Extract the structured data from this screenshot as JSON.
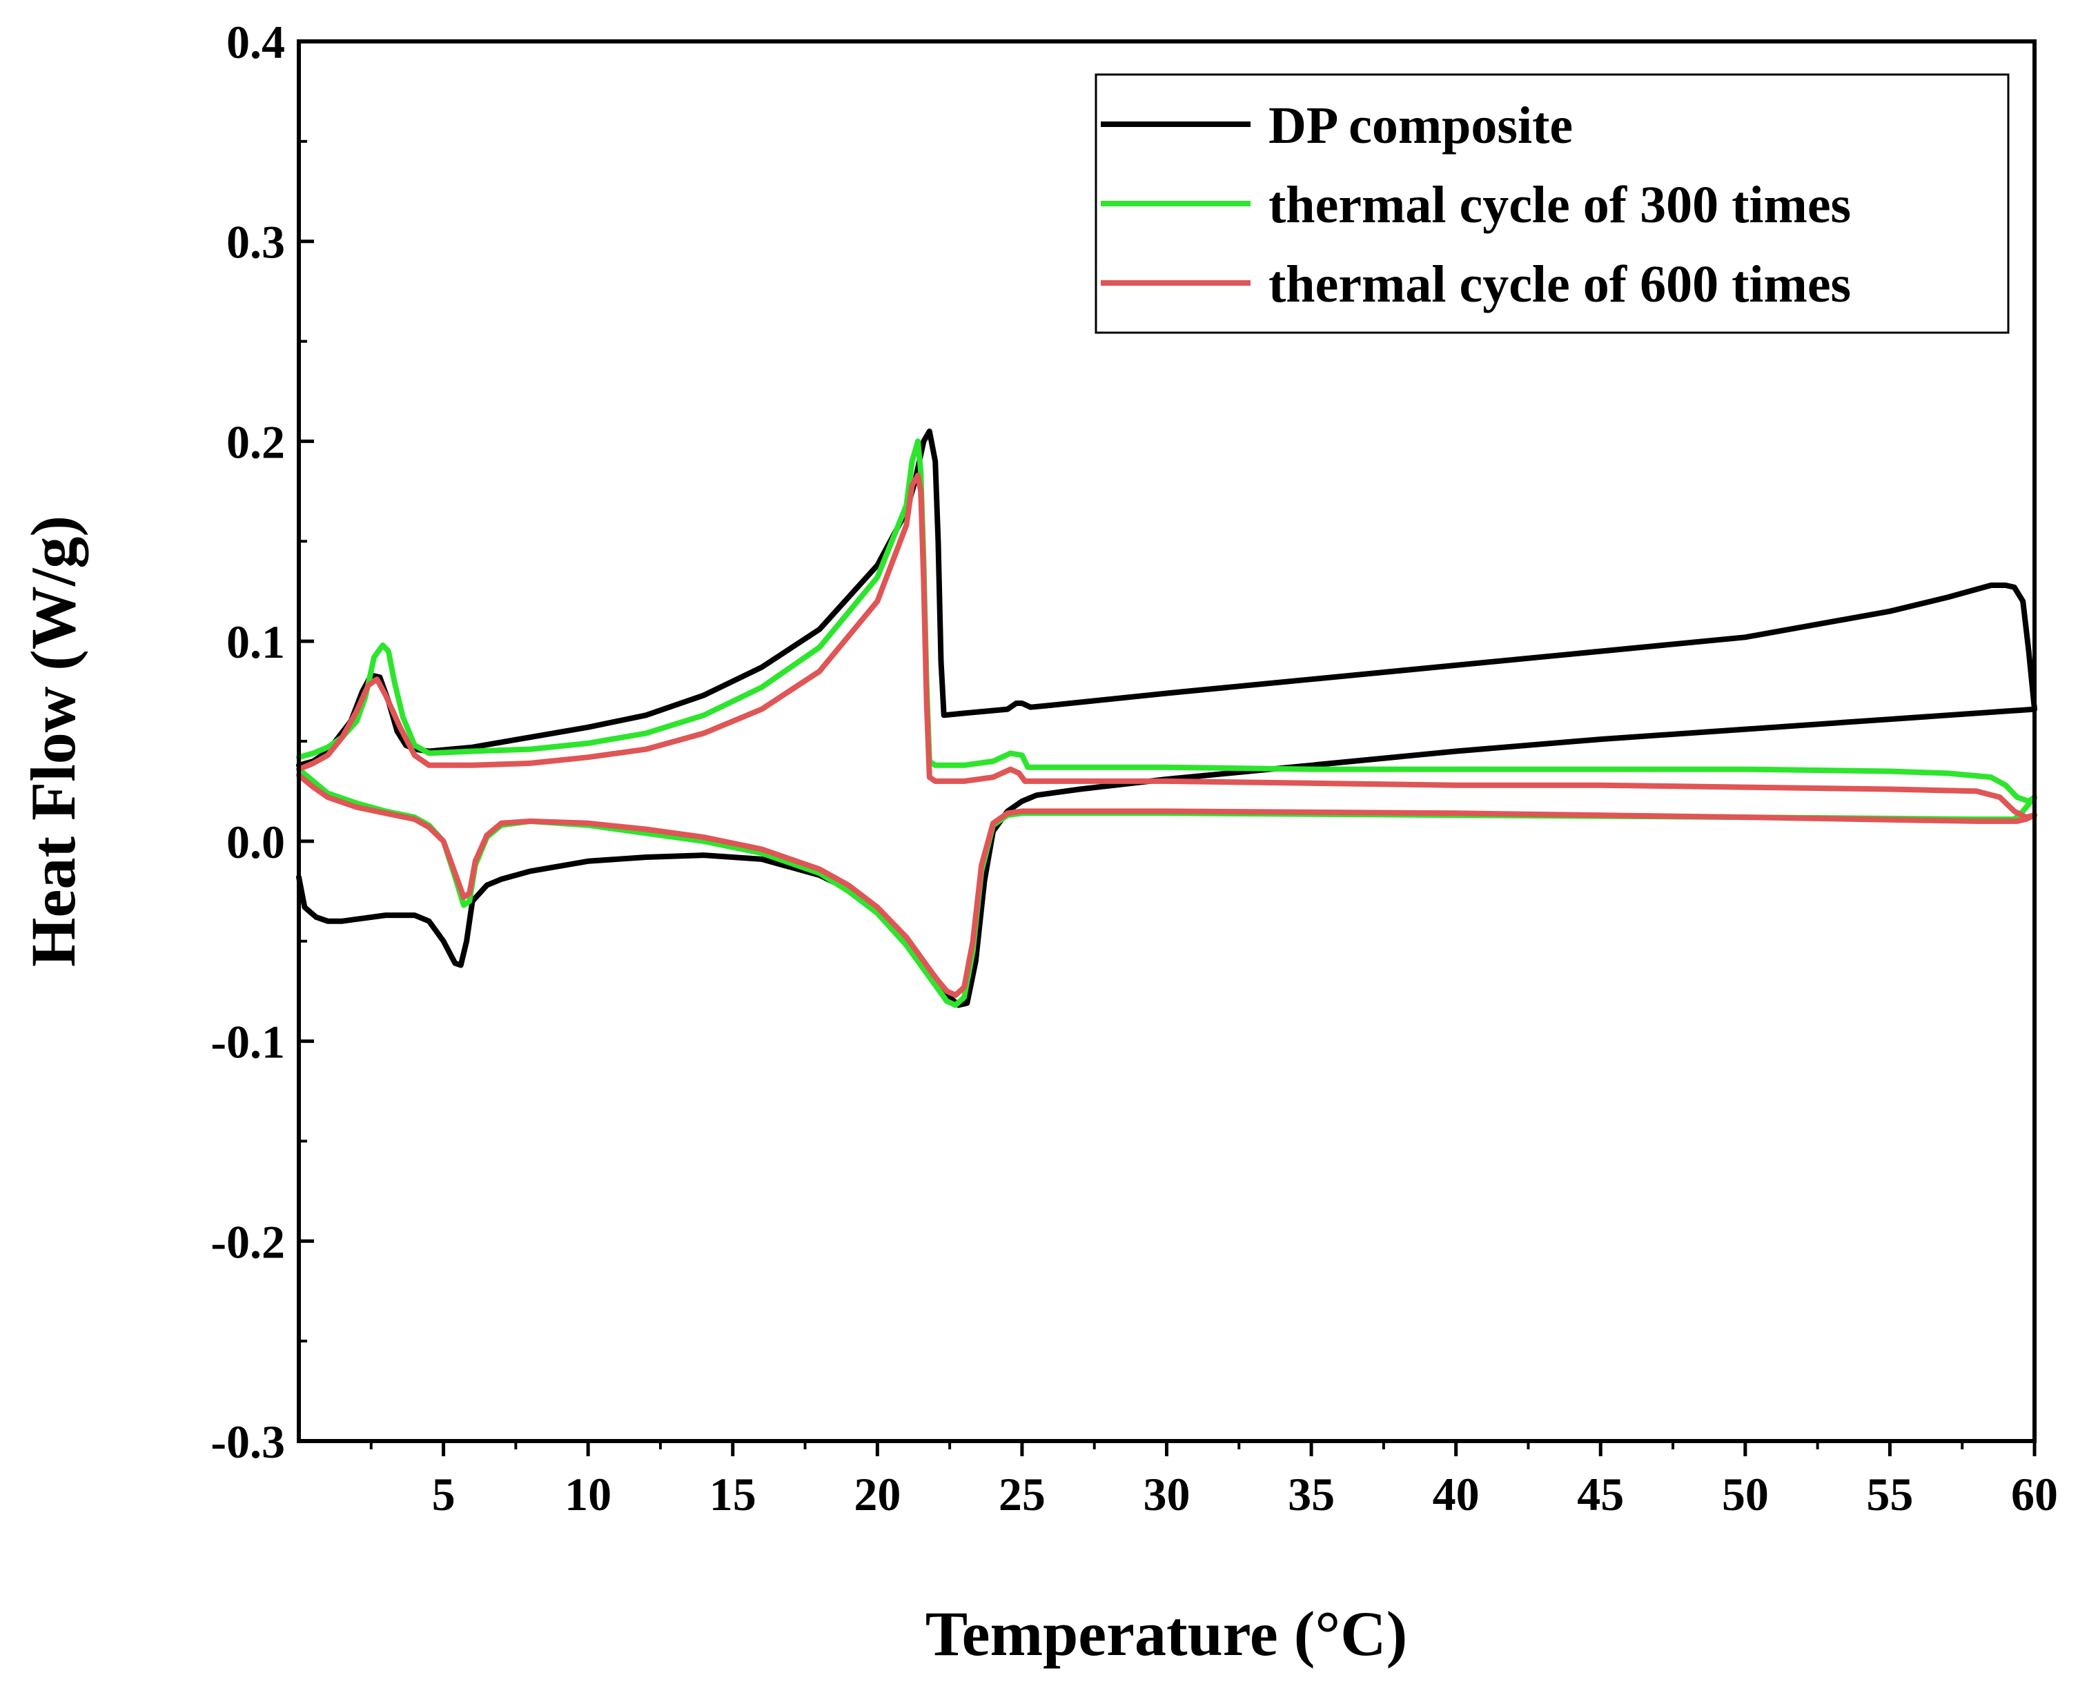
{
  "chart_data": {
    "type": "line",
    "title": "",
    "xlabel": "Temperature (°C)",
    "ylabel": "Heat Flow (W/g)",
    "xlim": [
      0,
      60
    ],
    "ylim": [
      -0.3,
      0.4
    ],
    "xticks": [
      5,
      10,
      15,
      20,
      25,
      30,
      35,
      40,
      45,
      50,
      55,
      60
    ],
    "xtick_labels": [
      "5",
      "10",
      "15",
      "20",
      "25",
      "30",
      "35",
      "40",
      "45",
      "50",
      "55",
      "60"
    ],
    "yticks": [
      -0.3,
      -0.2,
      -0.1,
      0.0,
      0.1,
      0.2,
      0.3,
      0.4
    ],
    "ytick_labels": [
      "-0.3",
      "-0.2",
      "-0.1",
      "0.0",
      "0.1",
      "0.2",
      "0.3",
      "0.4"
    ],
    "legend_position": "top-right",
    "series": [
      {
        "name": "DP composite",
        "color": "#000000",
        "heating": [
          [
            0.0,
            -0.018
          ],
          [
            0.2,
            -0.033
          ],
          [
            0.6,
            -0.038
          ],
          [
            1.0,
            -0.04
          ],
          [
            1.5,
            -0.04
          ],
          [
            2.0,
            -0.039
          ],
          [
            3.0,
            -0.037
          ],
          [
            4.0,
            -0.037
          ],
          [
            4.5,
            -0.04
          ],
          [
            5.0,
            -0.05
          ],
          [
            5.4,
            -0.061
          ],
          [
            5.6,
            -0.062
          ],
          [
            5.8,
            -0.05
          ],
          [
            6.0,
            -0.03
          ],
          [
            6.5,
            -0.022
          ],
          [
            7.0,
            -0.019
          ],
          [
            8.0,
            -0.015
          ],
          [
            10.0,
            -0.01
          ],
          [
            12.0,
            -0.008
          ],
          [
            14.0,
            -0.007
          ],
          [
            16.0,
            -0.009
          ],
          [
            18.0,
            -0.017
          ],
          [
            19.0,
            -0.024
          ],
          [
            20.0,
            -0.035
          ],
          [
            21.0,
            -0.05
          ],
          [
            22.0,
            -0.068
          ],
          [
            22.5,
            -0.078
          ],
          [
            22.8,
            -0.082
          ],
          [
            23.1,
            -0.081
          ],
          [
            23.4,
            -0.06
          ],
          [
            23.7,
            -0.02
          ],
          [
            24.0,
            0.005
          ],
          [
            24.5,
            0.015
          ],
          [
            25.0,
            0.02
          ],
          [
            25.5,
            0.023
          ],
          [
            26.0,
            0.024
          ],
          [
            27.0,
            0.026
          ],
          [
            30.0,
            0.031
          ],
          [
            35.0,
            0.038
          ],
          [
            40.0,
            0.045
          ],
          [
            45.0,
            0.051
          ],
          [
            50.0,
            0.056
          ],
          [
            55.0,
            0.061
          ],
          [
            58.0,
            0.064
          ],
          [
            60.0,
            0.066
          ]
        ],
        "cooling": [
          [
            60.0,
            0.066
          ],
          [
            59.8,
            0.095
          ],
          [
            59.6,
            0.12
          ],
          [
            59.3,
            0.127
          ],
          [
            59.0,
            0.128
          ],
          [
            58.5,
            0.128
          ],
          [
            57.0,
            0.122
          ],
          [
            55.0,
            0.115
          ],
          [
            50.0,
            0.102
          ],
          [
            45.0,
            0.095
          ],
          [
            40.0,
            0.088
          ],
          [
            35.0,
            0.081
          ],
          [
            30.0,
            0.074
          ],
          [
            26.0,
            0.068
          ],
          [
            25.3,
            0.067
          ],
          [
            25.0,
            0.069
          ],
          [
            24.8,
            0.069
          ],
          [
            24.5,
            0.066
          ],
          [
            23.0,
            0.064
          ],
          [
            22.3,
            0.063
          ],
          [
            22.2,
            0.09
          ],
          [
            22.1,
            0.15
          ],
          [
            22.0,
            0.19
          ],
          [
            21.8,
            0.205
          ],
          [
            21.6,
            0.2
          ],
          [
            21.3,
            0.18
          ],
          [
            21.0,
            0.165
          ],
          [
            20.0,
            0.138
          ],
          [
            18.0,
            0.106
          ],
          [
            16.0,
            0.087
          ],
          [
            14.0,
            0.073
          ],
          [
            12.0,
            0.063
          ],
          [
            10.0,
            0.057
          ],
          [
            8.0,
            0.052
          ],
          [
            6.0,
            0.047
          ],
          [
            4.5,
            0.045
          ],
          [
            4.0,
            0.046
          ],
          [
            3.7,
            0.048
          ],
          [
            3.4,
            0.055
          ],
          [
            3.1,
            0.07
          ],
          [
            2.8,
            0.082
          ],
          [
            2.5,
            0.083
          ],
          [
            2.2,
            0.075
          ],
          [
            1.8,
            0.06
          ],
          [
            1.0,
            0.045
          ],
          [
            0.5,
            0.04
          ],
          [
            0.0,
            0.038
          ]
        ]
      },
      {
        "name": "thermal cycle of 300 times",
        "color": "#2de52d",
        "heating": [
          [
            0.0,
            0.036
          ],
          [
            0.5,
            0.03
          ],
          [
            1.0,
            0.024
          ],
          [
            2.0,
            0.019
          ],
          [
            3.0,
            0.015
          ],
          [
            4.0,
            0.012
          ],
          [
            4.5,
            0.008
          ],
          [
            5.0,
            0.0
          ],
          [
            5.4,
            -0.018
          ],
          [
            5.7,
            -0.032
          ],
          [
            5.9,
            -0.03
          ],
          [
            6.1,
            -0.012
          ],
          [
            6.5,
            0.002
          ],
          [
            7.0,
            0.008
          ],
          [
            8.0,
            0.01
          ],
          [
            10.0,
            0.008
          ],
          [
            12.0,
            0.004
          ],
          [
            14.0,
            0.0
          ],
          [
            16.0,
            -0.006
          ],
          [
            18.0,
            -0.016
          ],
          [
            19.0,
            -0.025
          ],
          [
            20.0,
            -0.036
          ],
          [
            21.0,
            -0.052
          ],
          [
            22.0,
            -0.072
          ],
          [
            22.4,
            -0.08
          ],
          [
            22.7,
            -0.082
          ],
          [
            23.0,
            -0.078
          ],
          [
            23.3,
            -0.055
          ],
          [
            23.6,
            -0.015
          ],
          [
            24.0,
            0.008
          ],
          [
            24.5,
            0.013
          ],
          [
            25.0,
            0.014
          ],
          [
            26.0,
            0.014
          ],
          [
            30.0,
            0.014
          ],
          [
            40.0,
            0.013
          ],
          [
            50.0,
            0.012
          ],
          [
            58.0,
            0.011
          ],
          [
            59.3,
            0.011
          ],
          [
            59.6,
            0.015
          ],
          [
            60.0,
            0.022
          ]
        ],
        "cooling": [
          [
            60.0,
            0.022
          ],
          [
            59.8,
            0.02
          ],
          [
            59.4,
            0.022
          ],
          [
            59.0,
            0.028
          ],
          [
            58.5,
            0.032
          ],
          [
            57.0,
            0.034
          ],
          [
            55.0,
            0.035
          ],
          [
            50.0,
            0.036
          ],
          [
            45.0,
            0.036
          ],
          [
            40.0,
            0.036
          ],
          [
            35.0,
            0.036
          ],
          [
            30.0,
            0.037
          ],
          [
            26.0,
            0.037
          ],
          [
            25.2,
            0.037
          ],
          [
            25.0,
            0.043
          ],
          [
            24.6,
            0.044
          ],
          [
            24.0,
            0.04
          ],
          [
            23.0,
            0.038
          ],
          [
            22.0,
            0.038
          ],
          [
            21.8,
            0.04
          ],
          [
            21.7,
            0.08
          ],
          [
            21.6,
            0.14
          ],
          [
            21.5,
            0.185
          ],
          [
            21.4,
            0.2
          ],
          [
            21.2,
            0.19
          ],
          [
            21.0,
            0.168
          ],
          [
            20.0,
            0.132
          ],
          [
            18.0,
            0.097
          ],
          [
            16.0,
            0.077
          ],
          [
            14.0,
            0.063
          ],
          [
            12.0,
            0.054
          ],
          [
            10.0,
            0.049
          ],
          [
            8.0,
            0.046
          ],
          [
            6.0,
            0.045
          ],
          [
            4.5,
            0.044
          ],
          [
            4.0,
            0.048
          ],
          [
            3.6,
            0.062
          ],
          [
            3.3,
            0.08
          ],
          [
            3.1,
            0.095
          ],
          [
            2.9,
            0.098
          ],
          [
            2.6,
            0.092
          ],
          [
            2.3,
            0.072
          ],
          [
            2.0,
            0.06
          ],
          [
            1.5,
            0.052
          ],
          [
            1.0,
            0.047
          ],
          [
            0.5,
            0.044
          ],
          [
            0.0,
            0.042
          ]
        ]
      },
      {
        "name": "thermal cycle of 600 times",
        "color": "#e05555",
        "heating": [
          [
            0.0,
            0.033
          ],
          [
            0.5,
            0.027
          ],
          [
            1.0,
            0.022
          ],
          [
            2.0,
            0.017
          ],
          [
            3.0,
            0.014
          ],
          [
            4.0,
            0.011
          ],
          [
            4.5,
            0.007
          ],
          [
            5.0,
            0.0
          ],
          [
            5.4,
            -0.016
          ],
          [
            5.7,
            -0.028
          ],
          [
            5.9,
            -0.026
          ],
          [
            6.1,
            -0.01
          ],
          [
            6.5,
            0.003
          ],
          [
            7.0,
            0.009
          ],
          [
            8.0,
            0.01
          ],
          [
            10.0,
            0.009
          ],
          [
            12.0,
            0.006
          ],
          [
            14.0,
            0.002
          ],
          [
            16.0,
            -0.004
          ],
          [
            18.0,
            -0.014
          ],
          [
            19.0,
            -0.022
          ],
          [
            20.0,
            -0.033
          ],
          [
            21.0,
            -0.048
          ],
          [
            22.0,
            -0.068
          ],
          [
            22.4,
            -0.075
          ],
          [
            22.7,
            -0.077
          ],
          [
            23.0,
            -0.073
          ],
          [
            23.3,
            -0.05
          ],
          [
            23.6,
            -0.012
          ],
          [
            24.0,
            0.009
          ],
          [
            24.5,
            0.014
          ],
          [
            25.0,
            0.015
          ],
          [
            26.0,
            0.015
          ],
          [
            30.0,
            0.015
          ],
          [
            40.0,
            0.014
          ],
          [
            50.0,
            0.012
          ],
          [
            58.0,
            0.01
          ],
          [
            59.4,
            0.01
          ],
          [
            59.7,
            0.011
          ],
          [
            60.0,
            0.013
          ]
        ],
        "cooling": [
          [
            60.0,
            0.013
          ],
          [
            59.7,
            0.012
          ],
          [
            59.3,
            0.015
          ],
          [
            58.8,
            0.022
          ],
          [
            58.0,
            0.025
          ],
          [
            55.0,
            0.026
          ],
          [
            50.0,
            0.027
          ],
          [
            45.0,
            0.028
          ],
          [
            40.0,
            0.028
          ],
          [
            35.0,
            0.029
          ],
          [
            30.0,
            0.03
          ],
          [
            26.0,
            0.03
          ],
          [
            25.1,
            0.03
          ],
          [
            24.9,
            0.034
          ],
          [
            24.6,
            0.036
          ],
          [
            24.0,
            0.032
          ],
          [
            23.0,
            0.03
          ],
          [
            22.0,
            0.03
          ],
          [
            21.8,
            0.032
          ],
          [
            21.7,
            0.07
          ],
          [
            21.6,
            0.13
          ],
          [
            21.5,
            0.175
          ],
          [
            21.4,
            0.183
          ],
          [
            21.2,
            0.178
          ],
          [
            21.0,
            0.158
          ],
          [
            20.0,
            0.12
          ],
          [
            18.0,
            0.085
          ],
          [
            16.0,
            0.066
          ],
          [
            14.0,
            0.054
          ],
          [
            12.0,
            0.046
          ],
          [
            10.0,
            0.042
          ],
          [
            8.0,
            0.039
          ],
          [
            6.0,
            0.038
          ],
          [
            4.5,
            0.038
          ],
          [
            4.0,
            0.043
          ],
          [
            3.5,
            0.057
          ],
          [
            3.0,
            0.073
          ],
          [
            2.7,
            0.081
          ],
          [
            2.4,
            0.078
          ],
          [
            2.0,
            0.065
          ],
          [
            1.5,
            0.052
          ],
          [
            1.0,
            0.043
          ],
          [
            0.5,
            0.039
          ],
          [
            0.0,
            0.036
          ]
        ]
      }
    ]
  }
}
